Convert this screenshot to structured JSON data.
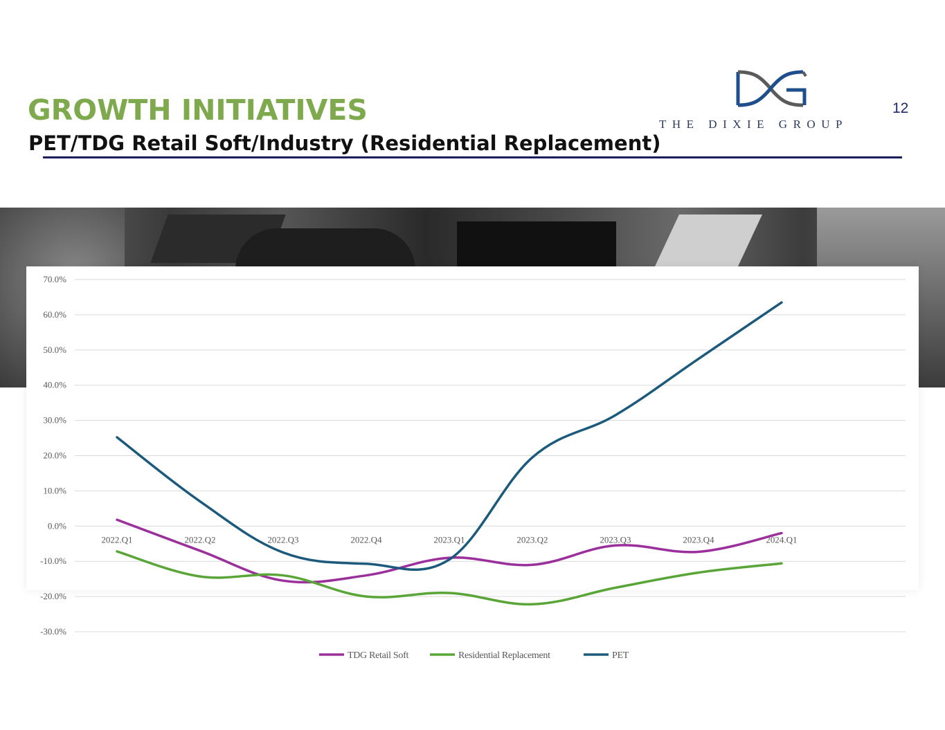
{
  "header": {
    "title": "GROWTH INITIATIVES",
    "subtitle": "PET/TDG Retail Soft/Industry (Residential Replacement)",
    "page_number": "12"
  },
  "logo": {
    "text": "THE DIXIE GROUP",
    "colors": {
      "blue": "#1f4e8c",
      "gray": "#5b5b5b"
    }
  },
  "colors": {
    "title": "#7ea94c",
    "rule": "#1c1d5e",
    "tdg_retail_soft": "#9b2f9b",
    "residential_replacement": "#59a537",
    "pet": "#1b5a7c"
  },
  "chart_data": {
    "type": "line",
    "smooth": true,
    "categories": [
      "2022.Q1",
      "2022.Q2",
      "2022.Q3",
      "2022.Q4",
      "2023.Q1",
      "2023.Q2",
      "2023.Q3",
      "2023.Q4",
      "2024.Q1"
    ],
    "series": [
      {
        "name": "TDG Retail Soft",
        "color": "#9b2f9b",
        "values": [
          1.8,
          -7.0,
          -15.5,
          -14.0,
          -9.0,
          -11.0,
          -5.5,
          -7.3,
          -2.0
        ]
      },
      {
        "name": "Residential Replacement",
        "color": "#59a537",
        "values": [
          -7.2,
          -14.3,
          -14.0,
          -20.0,
          -19.0,
          -22.2,
          -17.5,
          -13.2,
          -10.6
        ]
      },
      {
        "name": "PET",
        "color": "#1b5a7c",
        "values": [
          25.2,
          7.0,
          -7.5,
          -10.7,
          -9.5,
          19.5,
          31.5,
          47.5,
          63.5
        ]
      }
    ],
    "y_ticks": [
      "70.0%",
      "60.0%",
      "50.0%",
      "40.0%",
      "30.0%",
      "20.0%",
      "10.0%",
      "0.0%",
      "-10.0%",
      "-20.0%",
      "-30.0%"
    ],
    "ylim": [
      -30,
      70
    ],
    "grid": true,
    "legend_position": "bottom"
  }
}
